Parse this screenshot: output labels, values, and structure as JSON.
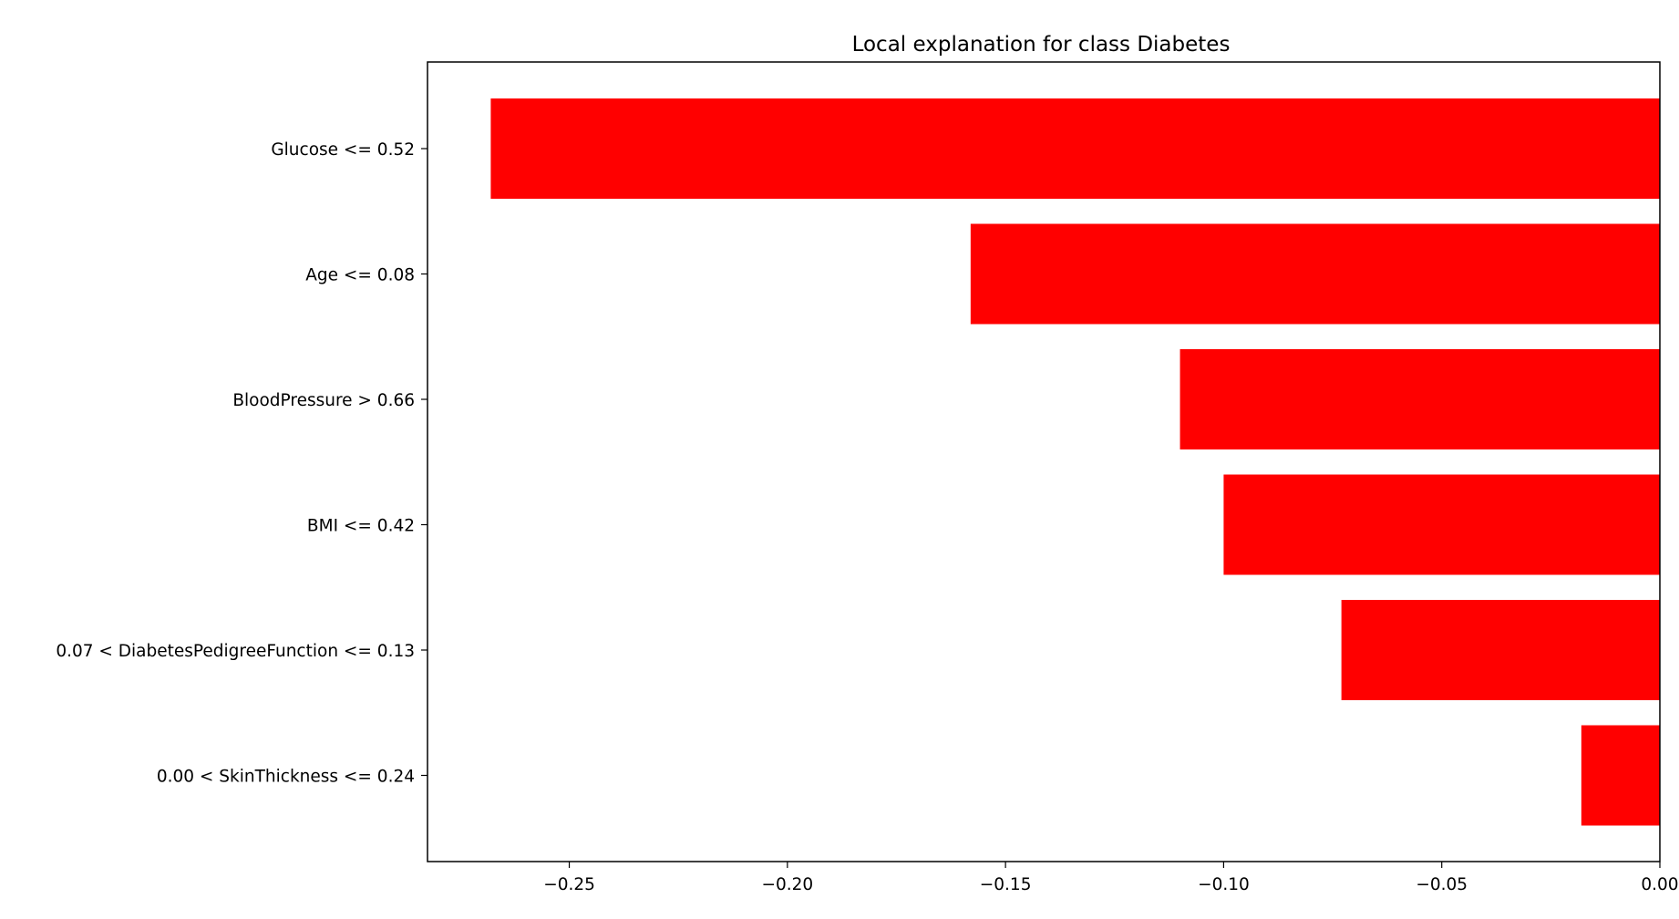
{
  "chart_data": {
    "type": "bar",
    "orientation": "horizontal",
    "title": "Local explanation for class Diabetes",
    "xlabel": "",
    "ylabel": "",
    "categories": [
      "Glucose <= 0.52",
      "Age <= 0.08",
      "BloodPressure > 0.66",
      "BMI <= 0.42",
      "0.07 < DiabetesPedigreeFunction <= 0.13",
      "0.00 < SkinThickness <= 0.24"
    ],
    "values": [
      -0.268,
      -0.158,
      -0.11,
      -0.1,
      -0.073,
      -0.018
    ],
    "xlim": [
      -0.2825,
      0.0
    ],
    "xticks": [
      -0.25,
      -0.2,
      -0.15,
      -0.1,
      -0.05,
      0.0
    ],
    "xtick_labels": [
      "−0.25",
      "−0.20",
      "−0.15",
      "−0.10",
      "−0.05",
      "0.00"
    ],
    "bar_color": "#ff0000",
    "grid": false,
    "legend": "none"
  }
}
